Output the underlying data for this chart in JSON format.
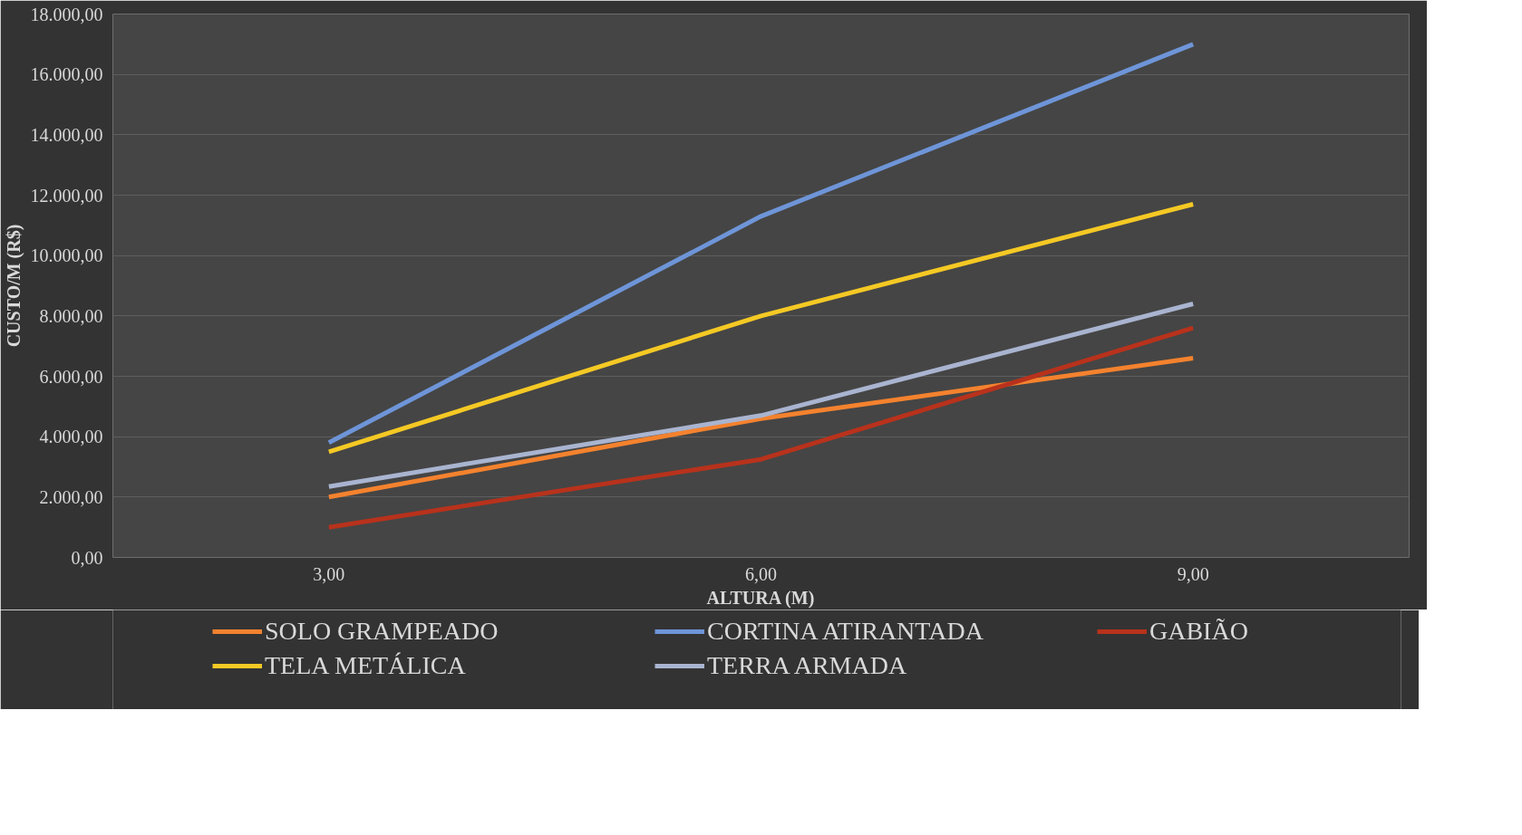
{
  "chart_data": {
    "type": "line",
    "xlabel": "ALTURA (M)",
    "ylabel": "CUSTO/M (R$)",
    "categories": [
      "3,00",
      "6,00",
      "9,00"
    ],
    "series": [
      {
        "name": "SOLO GRAMPEADO",
        "color": "#f4822e",
        "values": [
          2000,
          4600,
          6600
        ]
      },
      {
        "name": "CORTINA ATIRANTADA",
        "color": "#6e95d8",
        "values": [
          3800,
          11300,
          17000
        ]
      },
      {
        "name": "GABIÃO",
        "color": "#b8321c",
        "values": [
          1000,
          3250,
          7600
        ]
      },
      {
        "name": "TELA METÁLICA",
        "color": "#f5c924",
        "values": [
          3500,
          8000,
          11700
        ]
      },
      {
        "name": "TERRA ARMADA",
        "color": "#a9b4d0",
        "values": [
          2350,
          4700,
          8400
        ]
      }
    ],
    "ylim": [
      0,
      18000
    ],
    "yticks": [
      {
        "value": 0,
        "label": "0,00"
      },
      {
        "value": 2000,
        "label": "2.000,00"
      },
      {
        "value": 4000,
        "label": "4.000,00"
      },
      {
        "value": 6000,
        "label": "6.000,00"
      },
      {
        "value": 8000,
        "label": "8.000,00"
      },
      {
        "value": 10000,
        "label": "10.000,00"
      },
      {
        "value": 12000,
        "label": "12.000,00"
      },
      {
        "value": 14000,
        "label": "14.000,00"
      },
      {
        "value": 16000,
        "label": "16.000,00"
      },
      {
        "value": 18000,
        "label": "18.000,00"
      }
    ],
    "grid": "y",
    "legend": "bottom",
    "marker": "none",
    "line_style": "solid"
  }
}
